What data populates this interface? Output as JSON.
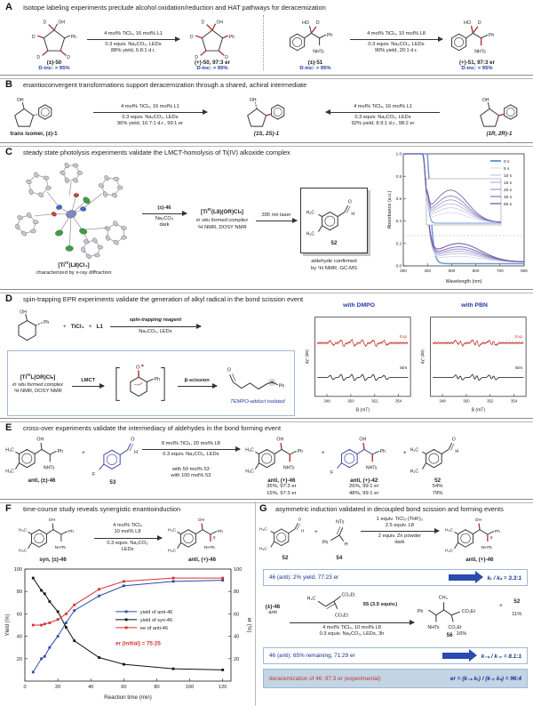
{
  "atoms": {
    "OH": "OH",
    "HO": "HO",
    "Ph": "Ph",
    "NHTs": "NHTs",
    "NTs": "NTs",
    "D": "D",
    "H3C": "H₃C",
    "O": "O",
    "H": "H",
    "F": "F",
    "CO2Et": "CO₂Et",
    "CH3": "CH₃",
    "R": "R",
    "TiCl4": "TiCl₄",
    "L1": "L1"
  },
  "panelA": {
    "label": "A",
    "header": "Isotope labeling experiments preclude alcohol oxidation/reduction and HAT pathways for deracemization",
    "left": {
      "reactant_name": "(±)-50",
      "reactant_dinc": "D-inc: > 95%",
      "cond1": "4 mol% TiCl₄, 16 mol% L1",
      "cond2": "0.3 equiv. Na₂CO₃, LEDs",
      "cond3": "88% yield, 6.8:1 d.r.",
      "product_name": "(+)-50, 97:3 er",
      "product_dinc": "D-inc: > 95%"
    },
    "right": {
      "reactant_name": "(±)-51",
      "reactant_dinc": "D-inc: > 95%",
      "cond1": "4 mol% TiCl₄, 10 mol% L8",
      "cond2": "0.3 equiv. Na₂CO₃, LEDs",
      "cond3": "90% yield, 20:1 d.r.",
      "product_name": "(+)-51, 97:3 er",
      "product_dinc": "D-inc: > 95%"
    }
  },
  "panelB": {
    "label": "B",
    "header": "enantioconvergent transformations support deracemization through a shared, achiral intermediate",
    "left_name": "trans isomer, (±)-1",
    "fwd": {
      "cond1": "4 mol% TiCl₄, 16 mol% L1",
      "cond2": "0.3 equiv. Na₂CO₃, LEDs",
      "cond3": "96% yield, 10.7:1 d.r., 99:1 er"
    },
    "center_name": "(1S, 2S)-1",
    "rev": {
      "cond1": "4 mol% TiCl₄, 16 mol% L1",
      "cond2": "0.3 equiv. Na₂CO₃, LEDs",
      "cond3": "92% yield, 8.9:1 d.r., 98:2 er"
    },
    "right_name": "(1R, 2R)-1"
  },
  "panelC": {
    "label": "C",
    "header": "steady state photolysis experiments validate the LMCT-homolysis of Ti(IV) alkoxide complex",
    "xray_pre": "[Ti",
    "xray_sup": "IV",
    "xray_post": "(L8)Cl₄]",
    "xray_caption": "characterized by x-ray diffraction",
    "arrow1_top": "(±)-46",
    "arrow1_b1": "Na₂CO₃",
    "arrow1_b2": "dark",
    "complex_pre": "[Ti",
    "complex_sup": "IV",
    "complex_post": "(L8)(OR)Clₙ]",
    "complex_sub1": "in situ formed complex",
    "complex_sub2": "¹H NMR, DOSY NMR",
    "arrow2_top": "395 nm laser",
    "product_num": "52",
    "product_caption1": "aldehyde confirmed",
    "product_caption2": "by ¹H NMR, GC-MS"
  },
  "panelD": {
    "label": "D",
    "header": "spin-trapping EPR experiments validate the generation of alkyl radical in the bond scission event",
    "plus1": "+",
    "reagent1": "TiCl₄",
    "plus2": "+",
    "reagent2": "L1",
    "arrow_top": "spin-trapping reagent",
    "arrow_bottom": "Na₂CO₃, LEDs",
    "box": {
      "complex_pre": "[Ti",
      "complex_sup": "IV",
      "complex_post": "L(OR)Clₙ]",
      "sub1": "in situ formed complex",
      "sub2": "¹H NMR, DOSY NMR",
      "arrow1": "LMCT",
      "arrow2": "β-scission",
      "note": "TEMPO-adduct isolated"
    },
    "epr1_title": "with DMPO",
    "epr2_title": "with PBN",
    "exp": "Exp",
    "sim": "Sim"
  },
  "panelE": {
    "label": "E",
    "header": "cross-over experiments validate the intermediacy of aldehydes in the bond forming event",
    "r1_name": "anti, (±)-46",
    "plus": "+",
    "r2_name": "53",
    "cond1": "8 mol% TiCl₄, 20 mol% L8",
    "cond2": "0.3 equiv. Na₂CO₃, LEDs",
    "row1_label": "with 50 mol% 53",
    "row2_label": "with 100 mol% 53",
    "p1_name": "anti, (+)-46",
    "p1_r1": "35%, 97:3 er",
    "p1_r2": "15%, 97:3 er",
    "p2_name": "anti, (+)-42",
    "p2_r1": "26%, 99:1 er",
    "p2_r2": "48%, 99:1 er",
    "p3_name": "52",
    "p3_r1": "54%",
    "p3_r2": "79%"
  },
  "panelF": {
    "label": "F",
    "header": "time-course study reveals synergistic enantioinduction",
    "reactant": "syn, (±)-46",
    "cond1": "4 mol% TiCl₄",
    "cond2": "10 mol% L8",
    "cond3": "0.3 equiv. Na₂CO₃",
    "cond4": "LEDs",
    "product": "anti, (+)-46"
  },
  "panelG": {
    "label": "G",
    "header": "asymmetric induction validated in decoupled bond scission and forming events",
    "s1": {
      "r1": "52",
      "plus": "+",
      "r2": "54",
      "cond1": "1 equiv. TiCl₃·(THF)₃",
      "cond2": "2.5 equiv. L8",
      "cond3": "2 equiv. Zn powder",
      "cond4": "dark",
      "p": "anti, (+)-46"
    },
    "box1_left": "46 (anti): 2% yield, 77:23 er",
    "box1_right": "kᵣ / kₛ = 3.3:1",
    "s2": {
      "r": "(±)-46",
      "r_sub": "anti",
      "reagent_num": "55 (3.5 equiv.)",
      "cond1": "4 mol% TiCl₄, 10 mol% L8",
      "cond2": "0.3 equiv. Na₂CO₃, LEDs, 3h",
      "p1": "56",
      "p1_yield": "16%",
      "plus": "+",
      "p2": "52",
      "p2_yield": "11%"
    },
    "box2_left": "46 (anti): 65% remaining, 71:29 er",
    "box2_right": "k₋ₛ / k₋ᵣ = 8.1:1",
    "box3_left": "deracemization of 46:  97:3 er (experimental)",
    "box3_right": "er = (k₋ₛ kᵣ) / (k₋ᵣ kₛ) = 96:4"
  },
  "chart_data": [
    {
      "id": "uv",
      "type": "line",
      "title": "",
      "xlabel": "Wavelength (nm)",
      "ylabel": "Absorbance (a.u.)",
      "xlim": [
        300,
        800
      ],
      "ylim": [
        0,
        1.0
      ],
      "xticks": [
        300,
        400,
        500,
        600,
        700,
        800
      ],
      "yticks": [
        0,
        0.2,
        0.4,
        0.6,
        0.8,
        1.0
      ],
      "legend_position": "top-right",
      "grid": false,
      "series": [
        {
          "name": "0 s",
          "color": "#6d9bd3",
          "band": 0.0
        },
        {
          "name": "5 s",
          "color": "#d9dcee",
          "band": 0.05
        },
        {
          "name": "10 s",
          "color": "#c9c6e6",
          "band": 0.075
        },
        {
          "name": "15 s",
          "color": "#b5addc",
          "band": 0.095
        },
        {
          "name": "20 s",
          "color": "#a092cf",
          "band": 0.115
        },
        {
          "name": "30 s",
          "color": "#8672ba",
          "band": 0.135
        },
        {
          "name": "60 s",
          "color": "#67519f",
          "band": 0.165
        }
      ]
    },
    {
      "id": "epr_dmpo",
      "type": "line",
      "title": "with DMPO",
      "xlabel": "B (mT)",
      "ylabel": "dχ″ (dB)",
      "xlim": [
        347,
        355
      ],
      "xticks": [
        348,
        350,
        352,
        354
      ],
      "traces": [
        {
          "name": "Exp",
          "color": "#c9453a"
        },
        {
          "name": "Sim",
          "color": "#111111"
        }
      ],
      "peaks": [
        348.4,
        349.3,
        350.2,
        351.1,
        352.0,
        352.9
      ],
      "amps": [
        0.7,
        1,
        1,
        1,
        1,
        0.7
      ],
      "split": 0
    },
    {
      "id": "epr_pbn",
      "type": "line",
      "title": "with PBN",
      "xlabel": "B (mT)",
      "ylabel": "dχ″ (dB)",
      "xlim": [
        347,
        355
      ],
      "xticks": [
        348,
        350,
        352,
        354
      ],
      "traces": [
        {
          "name": "Exp",
          "color": "#c9453a"
        },
        {
          "name": "Sim",
          "color": "#111111"
        }
      ],
      "peaks": [
        349.4,
        350.8,
        352.2
      ],
      "amps": [
        0.85,
        1,
        0.8
      ],
      "split": 0.34
    },
    {
      "id": "timecourse",
      "type": "line",
      "title": "",
      "xlabel": "Reaction time (min)",
      "ylabel": "Yield (%)",
      "ylabel_right": "er (%)",
      "xlim": [
        0,
        125
      ],
      "ylim": [
        0,
        100
      ],
      "xticks": [
        0,
        20,
        40,
        60,
        80,
        100,
        120
      ],
      "yticks": [
        20,
        40,
        60,
        80,
        100
      ],
      "legend_position": "center-right",
      "grid": false,
      "x": [
        5,
        10,
        12,
        15,
        20,
        25,
        30,
        45,
        60,
        90,
        120
      ],
      "series": [
        {
          "name": "yield of anti-46",
          "color": "#2b4bad",
          "values": [
            8,
            20,
            22,
            30,
            40,
            52,
            63,
            76,
            85,
            89,
            90
          ]
        },
        {
          "name": "yield of syn-46",
          "color": "#111111",
          "values": [
            92,
            81,
            78,
            71,
            62,
            48,
            36,
            21,
            15,
            11,
            10
          ]
        },
        {
          "name": "ee of anti-46",
          "color": "#d63333",
          "values": [
            50,
            50,
            51,
            52,
            55,
            60,
            68,
            82,
            89,
            92,
            92
          ]
        }
      ],
      "annotation": "er (initial) = 75:25"
    }
  ]
}
